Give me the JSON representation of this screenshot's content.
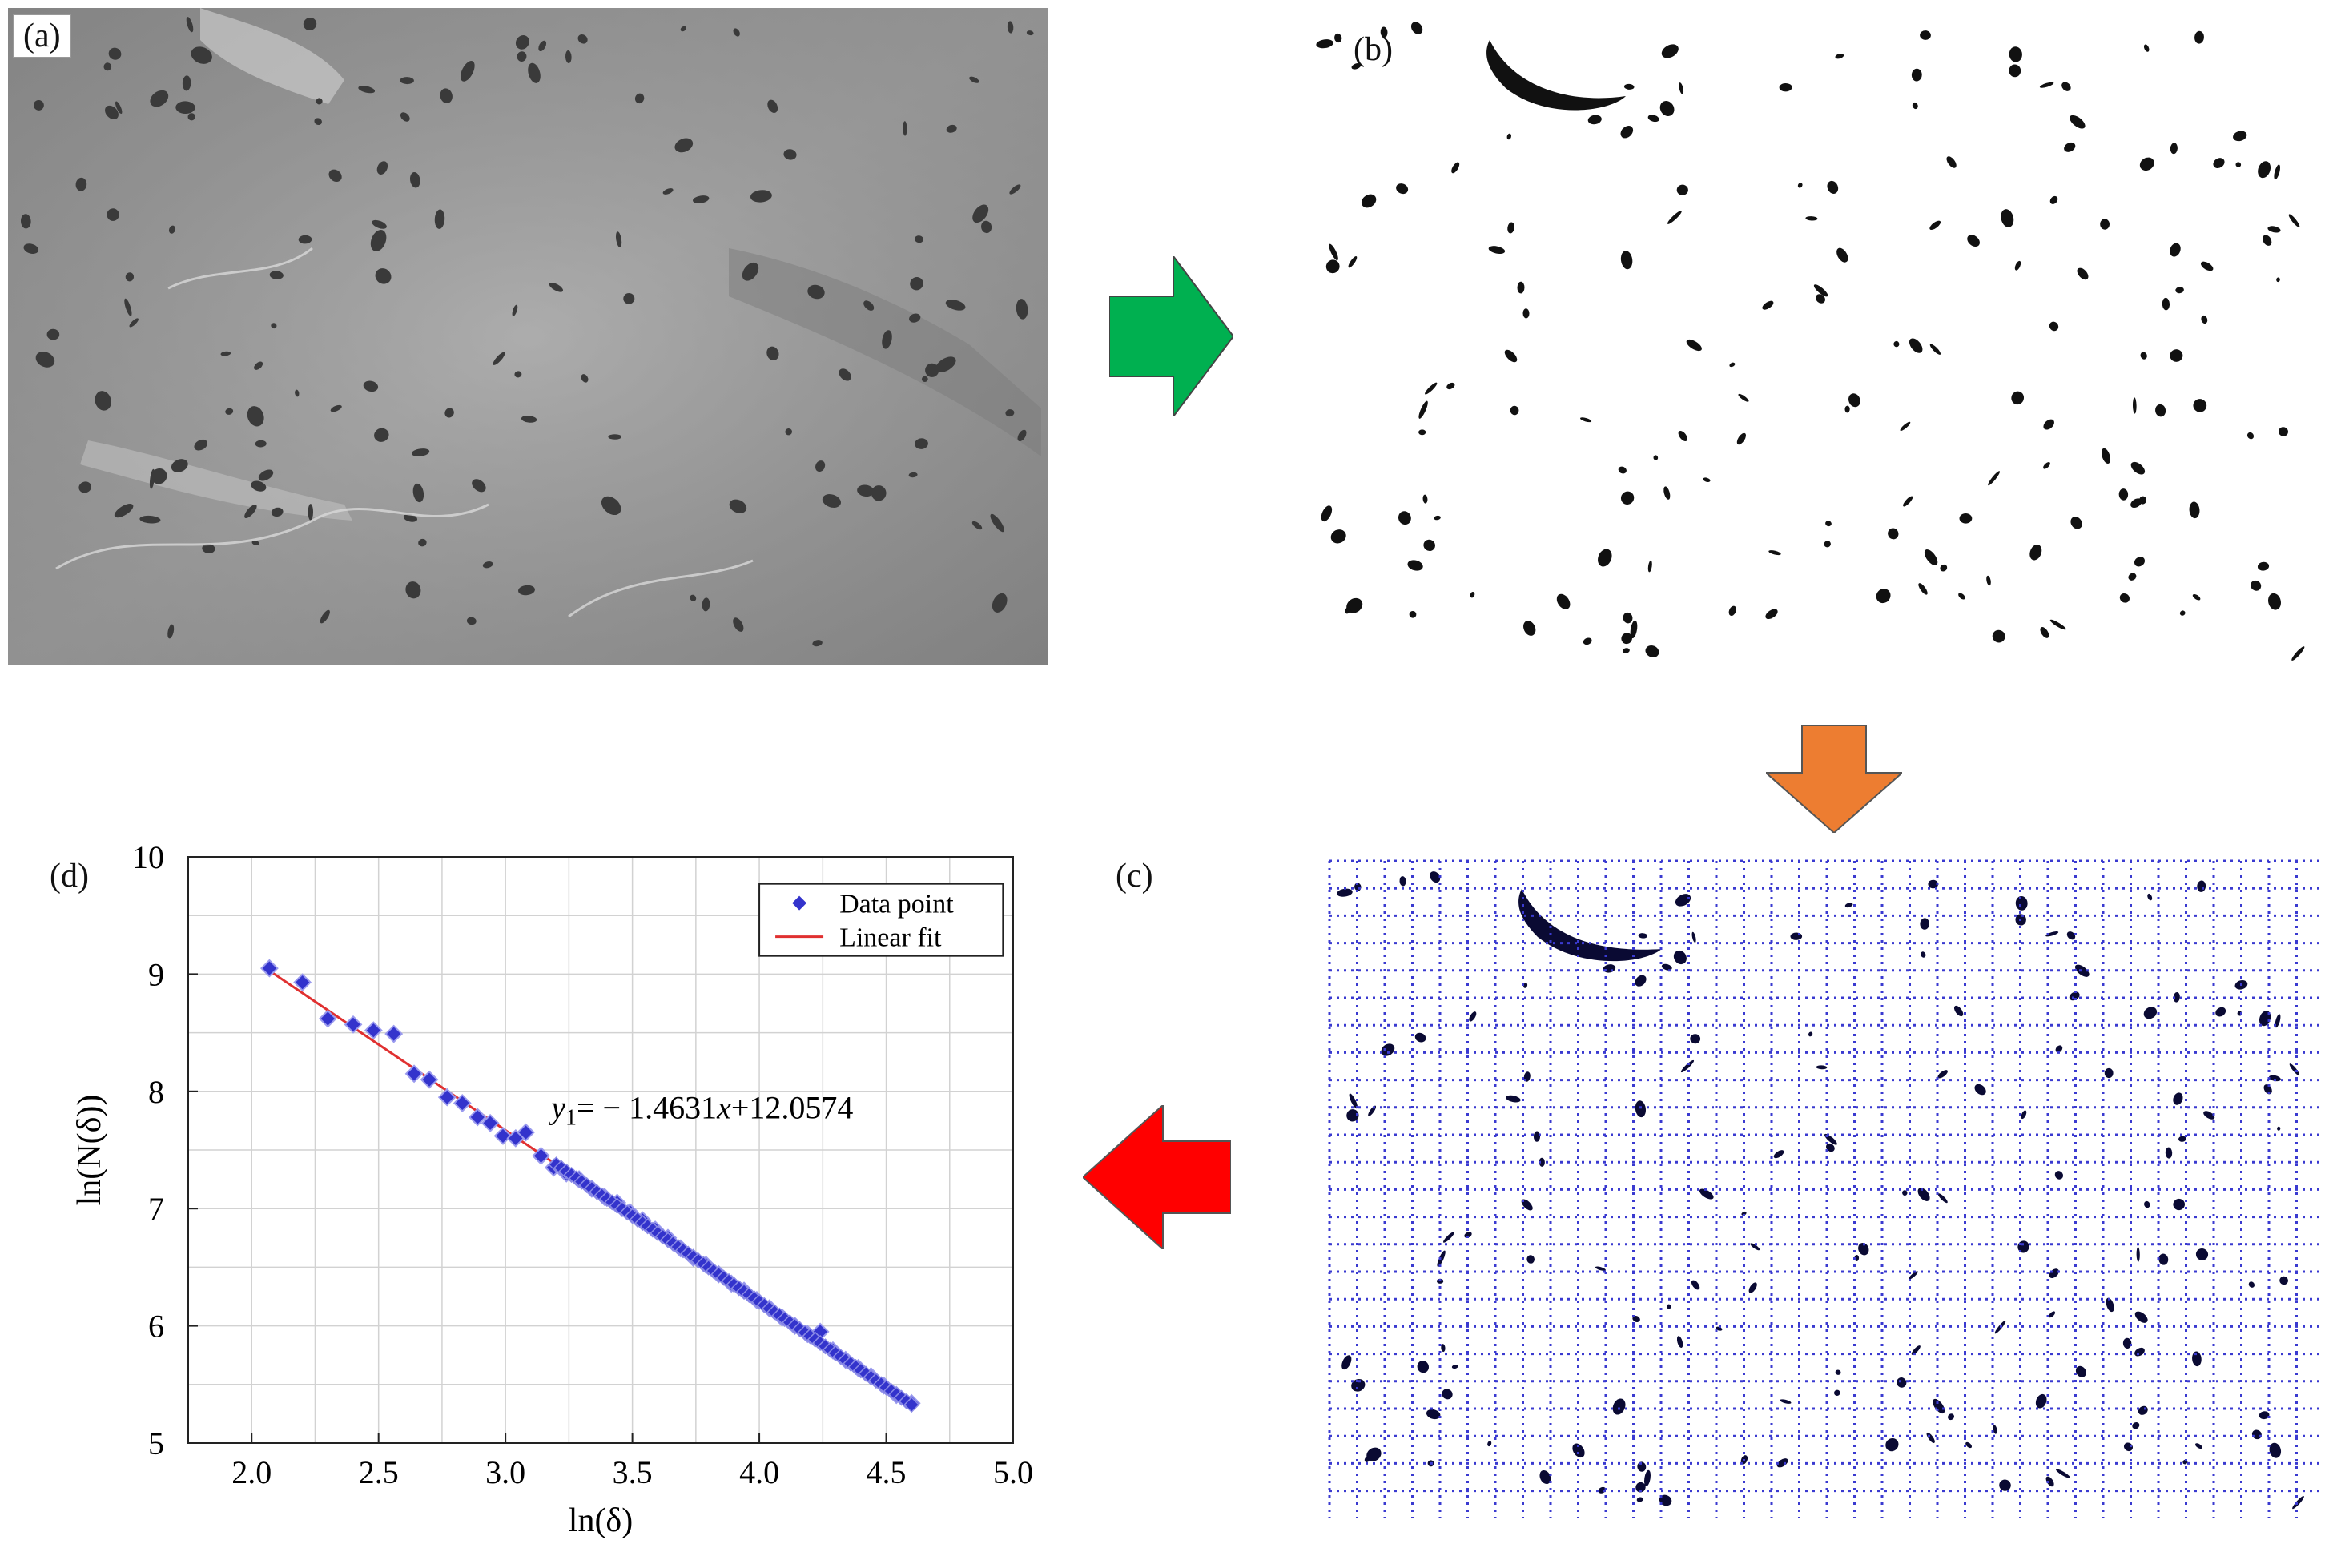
{
  "panels": {
    "a": {
      "label": "(a)"
    },
    "b": {
      "label": "(b)"
    },
    "c": {
      "label": "(c)"
    },
    "d": {
      "label": "(d)"
    }
  },
  "arrows": {
    "a_to_b": {
      "color": "#00b050",
      "direction": "right"
    },
    "b_to_c": {
      "color": "#ed7d31",
      "direction": "down"
    },
    "c_to_d": {
      "color": "#ff0000",
      "direction": "left"
    }
  },
  "chart_data": {
    "type": "scatter",
    "xlabel": "ln(δ)",
    "ylabel": "ln(N(δ))",
    "xlim": [
      1.75,
      5.0
    ],
    "ylim": [
      5,
      10
    ],
    "xticks": [
      "2.0",
      "2.5",
      "3.0",
      "3.5",
      "4.0",
      "4.5",
      "5.0"
    ],
    "yticks": [
      "5",
      "6",
      "7",
      "8",
      "9",
      "10"
    ],
    "grid": true,
    "legend_position": "top-right",
    "legend": [
      "Data point",
      "Linear fit"
    ],
    "equation": {
      "y": "y",
      "sub": "1",
      "text": "= − 1.4631",
      "x": "x",
      "rest": "+12.0574"
    },
    "fit": {
      "slope": -1.4631,
      "intercept": 12.0574,
      "x_range": [
        2.07,
        4.6
      ]
    },
    "colors": {
      "points": "#3333cc",
      "fit": "#e03030"
    },
    "series": [
      {
        "name": "Data point",
        "x": [
          2.07,
          2.2,
          2.3,
          2.4,
          2.48,
          2.56,
          2.64,
          2.7,
          2.77,
          2.83,
          2.89,
          2.94,
          2.99,
          3.04,
          3.08,
          3.14,
          3.19,
          3.24,
          3.29,
          3.34,
          3.39,
          3.44,
          3.49,
          3.54,
          3.59,
          3.64,
          3.69,
          3.74,
          3.79,
          3.84,
          3.89,
          3.94,
          3.99,
          4.04,
          4.09,
          4.14,
          4.19,
          4.24,
          4.29,
          4.34,
          4.39,
          4.44,
          4.49,
          4.54,
          4.6
        ],
        "y": [
          9.05,
          8.93,
          8.62,
          8.57,
          8.52,
          8.49,
          8.15,
          8.1,
          7.95,
          7.9,
          7.78,
          7.73,
          7.62,
          7.6,
          7.65,
          7.45,
          7.35,
          7.3,
          7.25,
          7.17,
          7.1,
          7.05,
          6.97,
          6.9,
          6.82,
          6.75,
          6.66,
          6.58,
          6.52,
          6.44,
          6.36,
          6.3,
          6.22,
          6.15,
          6.07,
          6.0,
          5.93,
          5.95,
          5.79,
          5.71,
          5.64,
          5.57,
          5.49,
          5.41,
          5.34
        ]
      }
    ]
  }
}
